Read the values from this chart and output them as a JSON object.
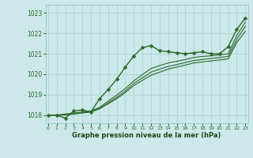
{
  "xlabel": "Graphe pression niveau de la mer (hPa)",
  "x_ticks": [
    0,
    1,
    2,
    3,
    4,
    5,
    6,
    7,
    8,
    9,
    10,
    11,
    12,
    13,
    14,
    15,
    16,
    17,
    18,
    19,
    20,
    21,
    22,
    23
  ],
  "y_ticks": [
    1018,
    1019,
    1020,
    1021,
    1022,
    1023
  ],
  "ylim": [
    1017.6,
    1023.4
  ],
  "xlim": [
    -0.3,
    23.3
  ],
  "background_color": "#cce8e8",
  "grid_color": "#aad0d0",
  "line_color": "#2d6a2d",
  "tick_color": "#2d6a2d",
  "lines": [
    {
      "y": [
        1018.0,
        1018.0,
        1017.85,
        1018.2,
        1018.25,
        1018.15,
        1018.8,
        1019.25,
        1019.75,
        1020.35,
        1020.9,
        1021.3,
        1021.4,
        1021.15,
        1021.1,
        1021.05,
        1021.0,
        1021.05,
        1021.1,
        1021.0,
        1021.0,
        1021.35,
        1022.2,
        1022.75
      ],
      "marker": "D",
      "markersize": 2.5,
      "linewidth": 1.0,
      "zorder": 5
    },
    {
      "y": [
        1018.0,
        1018.0,
        1018.0,
        1018.05,
        1018.1,
        1018.15,
        1018.3,
        1018.55,
        1018.8,
        1019.1,
        1019.45,
        1019.7,
        1019.95,
        1020.1,
        1020.25,
        1020.35,
        1020.45,
        1020.55,
        1020.6,
        1020.65,
        1020.7,
        1020.75,
        1021.55,
        1022.1
      ],
      "marker": null,
      "markersize": 0,
      "linewidth": 0.8,
      "zorder": 3
    },
    {
      "y": [
        1018.0,
        1018.0,
        1018.02,
        1018.07,
        1018.12,
        1018.18,
        1018.33,
        1018.6,
        1018.87,
        1019.18,
        1019.55,
        1019.82,
        1020.1,
        1020.25,
        1020.38,
        1020.47,
        1020.57,
        1020.67,
        1020.72,
        1020.77,
        1020.82,
        1020.87,
        1021.7,
        1022.35
      ],
      "marker": null,
      "markersize": 0,
      "linewidth": 0.8,
      "zorder": 3
    },
    {
      "y": [
        1018.0,
        1018.0,
        1018.05,
        1018.1,
        1018.15,
        1018.2,
        1018.38,
        1018.68,
        1018.98,
        1019.3,
        1019.68,
        1019.98,
        1020.28,
        1020.42,
        1020.55,
        1020.63,
        1020.72,
        1020.82,
        1020.87,
        1020.9,
        1020.95,
        1021.0,
        1021.9,
        1022.55
      ],
      "marker": null,
      "markersize": 0,
      "linewidth": 0.8,
      "zorder": 3
    }
  ]
}
